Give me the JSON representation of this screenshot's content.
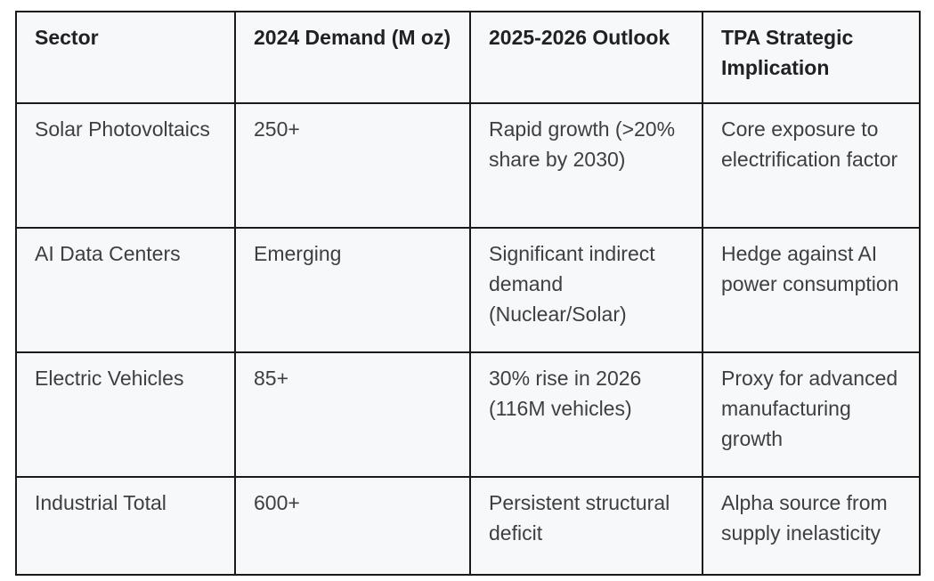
{
  "table": {
    "headers": [
      "Sector",
      "2024 Demand (M oz)",
      "2025-2026 Outlook",
      "TPA Strategic Implication"
    ],
    "rows": [
      {
        "sector": "Solar Photovoltaics",
        "demand_2024": "250+",
        "outlook_2025_2026": "Rapid growth (>20% share by 2030)",
        "tpa_strategic_implication": "Core exposure to electrification factor"
      },
      {
        "sector": "AI Data Centers",
        "demand_2024": "Emerging",
        "outlook_2025_2026": "Significant indirect demand (Nuclear/Solar)",
        "tpa_strategic_implication": "Hedge against AI power consumption"
      },
      {
        "sector": "Electric Vehicles",
        "demand_2024": "85+",
        "outlook_2025_2026": "30% rise in 2026 (116M vehicles)",
        "tpa_strategic_implication": "Proxy for advanced manufacturing growth"
      },
      {
        "sector": "Industrial Total",
        "demand_2024": "600+",
        "outlook_2025_2026": "Persistent structural deficit",
        "tpa_strategic_implication": "Alpha source from supply inelasticity"
      }
    ],
    "colors": {
      "cell_background": "#f7f8fa",
      "border": "#1a1a1a",
      "header_text": "#202124",
      "body_text": "#3c4043",
      "page_background": "#ffffff"
    }
  }
}
